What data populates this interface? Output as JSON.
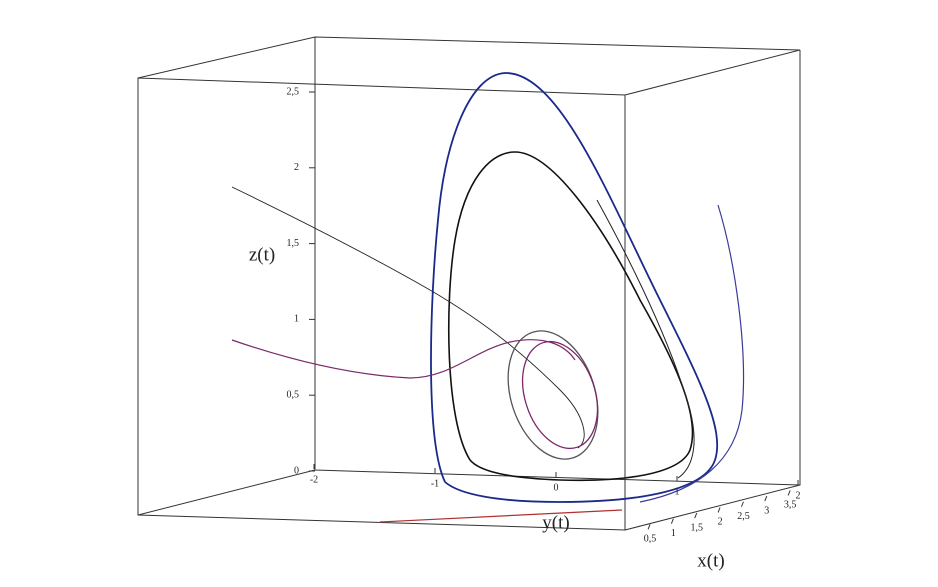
{
  "chart_data": {
    "type": "line3d",
    "xlabel": "x(t)",
    "ylabel": "y(t)",
    "zlabel": "z(t)",
    "xticks": [
      {
        "value": 0.5,
        "label": "0,5"
      },
      1,
      {
        "value": 1.5,
        "label": "1,5"
      },
      2,
      {
        "value": 2.5,
        "label": "2,5"
      },
      3,
      {
        "value": 3.5,
        "label": "3,5"
      }
    ],
    "yticks": [
      -2,
      -1,
      0,
      1,
      2
    ],
    "zticks": [
      0,
      {
        "value": 0.5,
        "label": "0,5"
      },
      1,
      {
        "value": 1.5,
        "label": "1,5"
      },
      2,
      {
        "value": 2.5,
        "label": "2,5"
      }
    ]
  }
}
